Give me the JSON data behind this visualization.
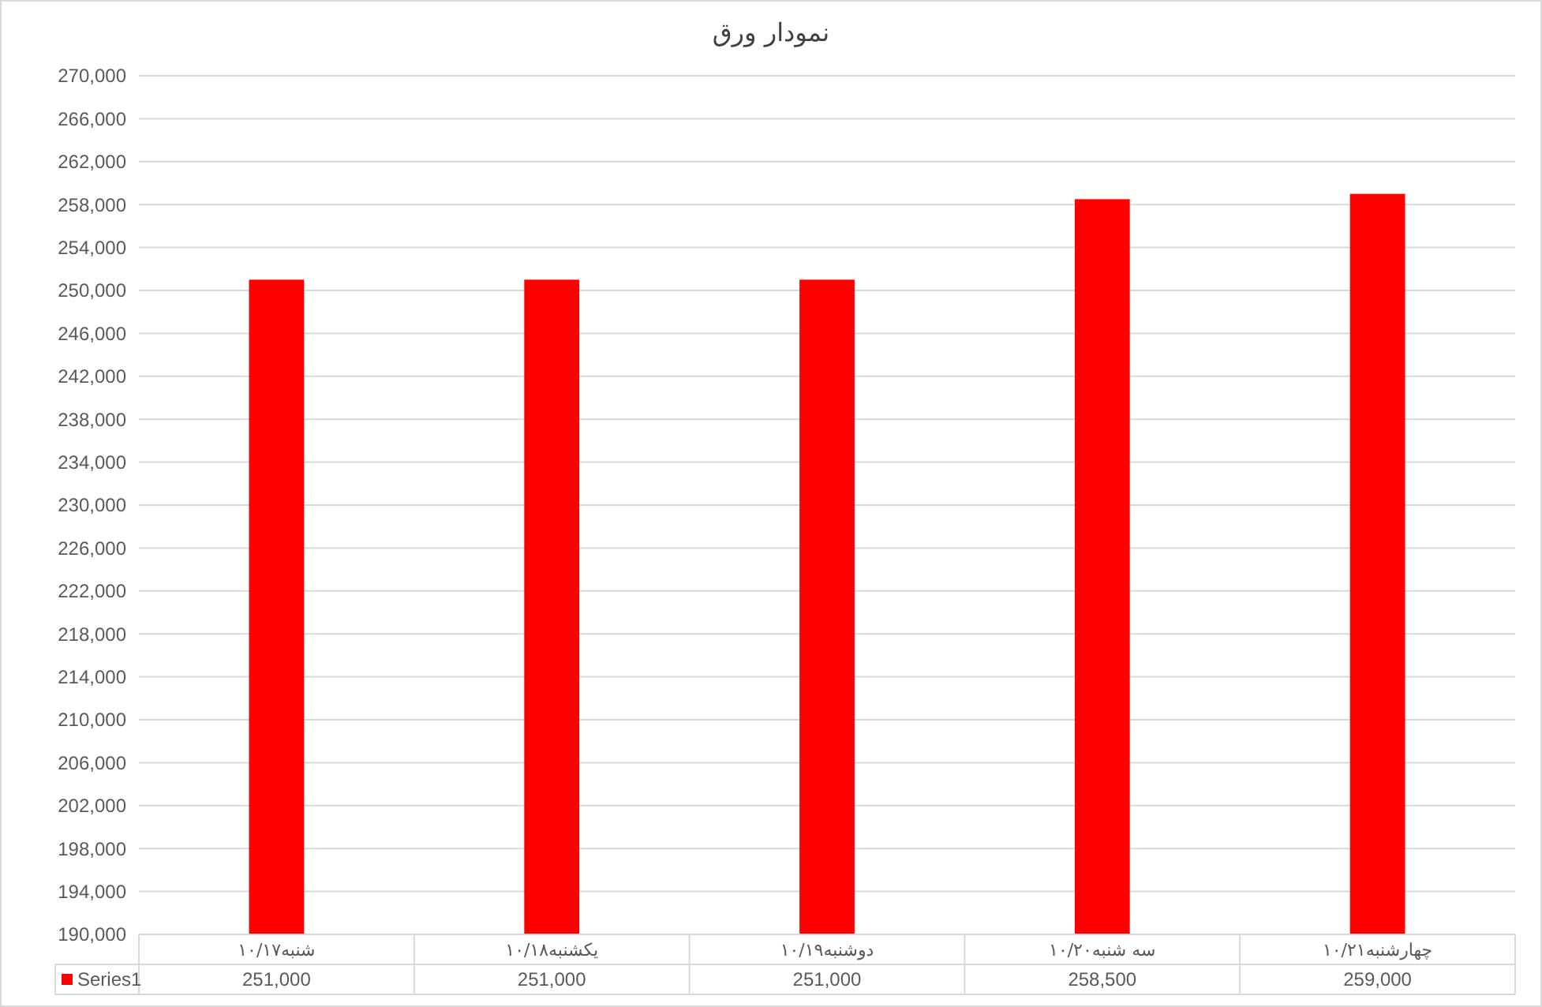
{
  "chart_data": {
    "type": "bar",
    "title": "نمودار ورق",
    "categories": [
      "شنبه۱۰/۱۷",
      "یکشنبه۱۰/۱۸",
      "دوشنبه۱۰/۱۹",
      "سه شنبه۱۰/۲۰",
      "چهارشنبه۱۰/۲۱"
    ],
    "series": [
      {
        "name": "Series1",
        "color": "#ff0000",
        "values": [
          251000,
          251000,
          251000,
          258500,
          259000
        ],
        "value_labels": [
          "251,000",
          "251,000",
          "251,000",
          "258,500",
          "259,000"
        ]
      }
    ],
    "ylim": [
      190000,
      270000
    ],
    "yticks": [
      {
        "value": 190000,
        "label": "190,000"
      },
      {
        "value": 194000,
        "label": "194,000"
      },
      {
        "value": 198000,
        "label": "198,000"
      },
      {
        "value": 202000,
        "label": "202,000"
      },
      {
        "value": 206000,
        "label": "206,000"
      },
      {
        "value": 210000,
        "label": "210,000"
      },
      {
        "value": 214000,
        "label": "214,000"
      },
      {
        "value": 218000,
        "label": "218,000"
      },
      {
        "value": 222000,
        "label": "222,000"
      },
      {
        "value": 226000,
        "label": "226,000"
      },
      {
        "value": 230000,
        "label": "230,000"
      },
      {
        "value": 234000,
        "label": "234,000"
      },
      {
        "value": 238000,
        "label": "238,000"
      },
      {
        "value": 242000,
        "label": "242,000"
      },
      {
        "value": 246000,
        "label": "246,000"
      },
      {
        "value": 250000,
        "label": "250,000"
      },
      {
        "value": 254000,
        "label": "254,000"
      },
      {
        "value": 258000,
        "label": "258,000"
      },
      {
        "value": 262000,
        "label": "262,000"
      },
      {
        "value": 266000,
        "label": "266,000"
      },
      {
        "value": 270000,
        "label": "270,000"
      }
    ],
    "grid": "y",
    "legend": "bottom left"
  }
}
